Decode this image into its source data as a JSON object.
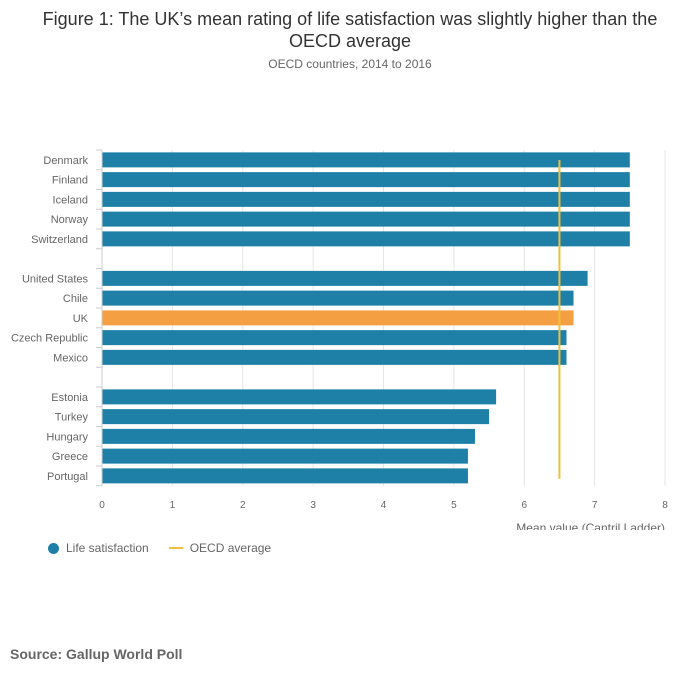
{
  "colors": {
    "bar": "#1f80a7",
    "highlight": "#f49f42",
    "average": "#f0c03a",
    "grid": "#e6e6e6",
    "text": "#666666"
  },
  "legend": {
    "series_label": "Life satisfaction",
    "average_label": "OECD average"
  },
  "source": "Source: Gallup World Poll",
  "chart_data": {
    "type": "bar",
    "orientation": "horizontal",
    "title": "Figure 1: The UK’s mean rating of life satisfaction was slightly higher than the OECD average",
    "subtitle": "OECD countries, 2014 to 2016",
    "xlabel": "Mean value (Cantril Ladder)",
    "xlim": [
      0,
      8
    ],
    "xticks": [
      0,
      1,
      2,
      3,
      4,
      5,
      6,
      7,
      8
    ],
    "grid": true,
    "legend_position": "bottom-left",
    "highlight_category": "UK",
    "reference_line": {
      "name": "OECD average",
      "value": 6.5
    },
    "groups": [
      {
        "categories": [
          "Denmark",
          "Finland",
          "Iceland",
          "Norway",
          "Switzerland"
        ],
        "values": [
          7.5,
          7.5,
          7.5,
          7.5,
          7.5
        ]
      },
      {
        "categories": [
          "United States",
          "Chile",
          "UK",
          "Czech Republic",
          "Mexico"
        ],
        "values": [
          6.9,
          6.7,
          6.7,
          6.6,
          6.6
        ]
      },
      {
        "categories": [
          "Estonia",
          "Turkey",
          "Hungary",
          "Greece",
          "Portugal"
        ],
        "values": [
          5.6,
          5.5,
          5.3,
          5.2,
          5.2
        ]
      }
    ]
  }
}
